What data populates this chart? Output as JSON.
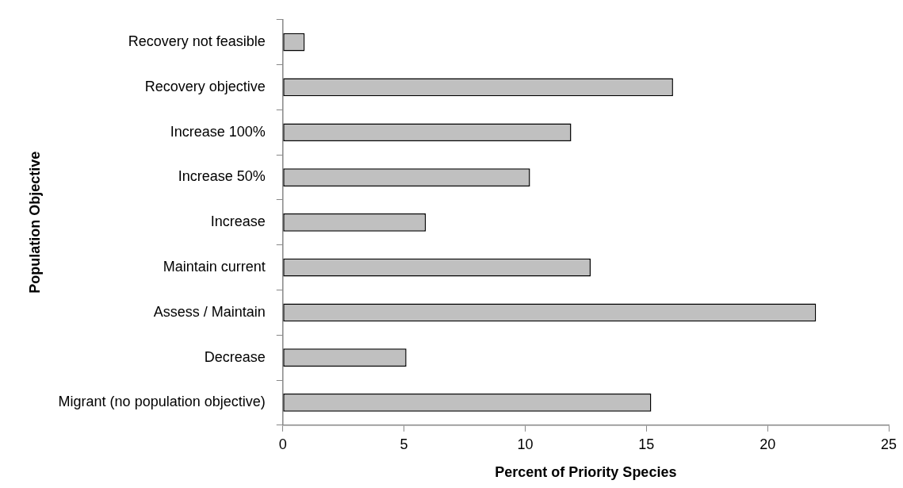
{
  "chart_data": {
    "type": "bar",
    "orientation": "horizontal",
    "xlabel": "Percent of Priority Species",
    "ylabel": "Population Objective",
    "categories": [
      "Recovery not feasible",
      "Recovery objective",
      "Increase 100%",
      "Increase 50%",
      "Increase",
      "Maintain current",
      "Assess / Maintain",
      "Decrease",
      "Migrant (no population objective)"
    ],
    "values": [
      0.9,
      16.1,
      11.9,
      10.2,
      5.9,
      12.7,
      22.0,
      5.1,
      15.2
    ],
    "color": "#c0c0c0",
    "xlim": [
      0,
      25
    ],
    "xticks": [
      0,
      5,
      10,
      15,
      20,
      25
    ],
    "grid": false,
    "legend": false
  }
}
